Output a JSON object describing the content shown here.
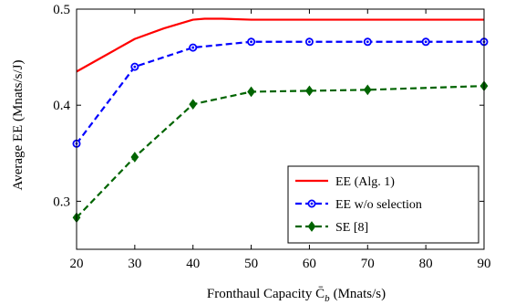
{
  "chart_data": {
    "type": "line",
    "xlabel": "Fronthaul Capacity C̄",
    "xlabel_sub": "b",
    "xlabel_unit": "(Mnats/s)",
    "ylabel": "Average EE (Mnats/s/J)",
    "xlim": [
      20,
      90
    ],
    "ylim": [
      0.25,
      0.5
    ],
    "xticks": [
      20,
      30,
      40,
      50,
      60,
      70,
      80,
      90
    ],
    "yticks": [
      0.3,
      0.4,
      0.5
    ],
    "grid": false,
    "legend_position": "bottom-right",
    "series": [
      {
        "name": "EE (Alg. 1)",
        "color": "#ff0000",
        "dash": "solid",
        "marker": "none",
        "x": [
          20,
          25,
          30,
          35,
          40,
          42,
          45,
          50,
          60,
          70,
          80,
          90
        ],
        "y": [
          0.435,
          0.452,
          0.469,
          0.48,
          0.489,
          0.49,
          0.49,
          0.489,
          0.489,
          0.489,
          0.489,
          0.489
        ]
      },
      {
        "name": "EE w/o selection",
        "color": "#0000ff",
        "dash": "dashed",
        "marker": "circle",
        "x": [
          20,
          30,
          40,
          50,
          60,
          70,
          80,
          90
        ],
        "y": [
          0.36,
          0.44,
          0.46,
          0.466,
          0.466,
          0.466,
          0.466,
          0.466
        ]
      },
      {
        "name": "SE [8]",
        "color": "#006400",
        "dash": "dashed",
        "marker": "diamond",
        "x": [
          20,
          30,
          40,
          50,
          60,
          70,
          90
        ],
        "y": [
          0.283,
          0.346,
          0.401,
          0.414,
          0.415,
          0.416,
          0.42
        ]
      }
    ]
  }
}
